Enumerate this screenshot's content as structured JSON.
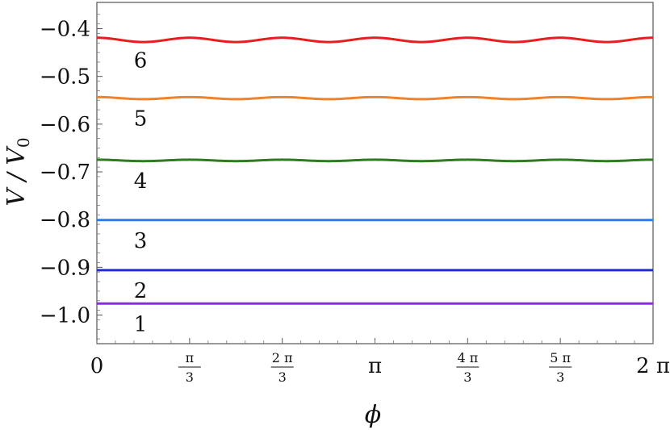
{
  "chart_data": {
    "type": "line",
    "xlabel": "ϕ",
    "ylabel": "V / V",
    "ylabel_sub": "0",
    "xlim": [
      0,
      6.2832
    ],
    "ylim": [
      -1.06,
      -0.345
    ],
    "grid": false,
    "x_ticks": [
      {
        "value": 0,
        "label": "0"
      },
      {
        "value": 1.0472,
        "num": "π",
        "den": "3"
      },
      {
        "value": 2.0944,
        "num": "2 π",
        "den": "3"
      },
      {
        "value": 3.1416,
        "label": "π"
      },
      {
        "value": 4.1888,
        "num": "4 π",
        "den": "3"
      },
      {
        "value": 5.236,
        "num": "5 π",
        "den": "3"
      },
      {
        "value": 6.2832,
        "label": "2 π"
      }
    ],
    "y_ticks": [
      {
        "value": -0.4,
        "label": "−0.4"
      },
      {
        "value": -0.5,
        "label": "−0.5"
      },
      {
        "value": -0.6,
        "label": "−0.6"
      },
      {
        "value": -0.7,
        "label": "−0.7"
      },
      {
        "value": -0.8,
        "label": "−0.8"
      },
      {
        "value": -0.9,
        "label": "−0.9"
      },
      {
        "value": -1.0,
        "label": "−1.0"
      }
    ],
    "series": [
      {
        "label": "1",
        "color": "#8a2be2",
        "mean": -0.976,
        "amplitude": 0.0,
        "period": 1.0472
      },
      {
        "label": "2",
        "color": "#1f2fd8",
        "mean": -0.906,
        "amplitude": 0.0,
        "period": 1.0472
      },
      {
        "label": "3",
        "color": "#2b7bf0",
        "mean": -0.801,
        "amplitude": 0.0,
        "period": 1.0472
      },
      {
        "label": "4",
        "color": "#2e7d1f",
        "mean": -0.676,
        "amplitude": 0.0015,
        "period": 1.0472
      },
      {
        "label": "5",
        "color": "#f0822a",
        "mean": -0.5455,
        "amplitude": 0.0022,
        "period": 1.0472
      },
      {
        "label": "6",
        "color": "#e61e1e",
        "mean": -0.4235,
        "amplitude": 0.0045,
        "period": 1.0472
      }
    ]
  }
}
